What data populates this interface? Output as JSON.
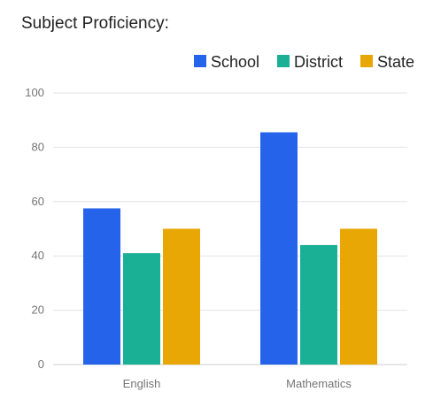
{
  "title": "Subject Proficiency:",
  "chart_data": {
    "type": "bar",
    "categories": [
      "English",
      "Mathematics"
    ],
    "series": [
      {
        "name": "School",
        "values": [
          57.5,
          85.5
        ],
        "color": "#2563EB"
      },
      {
        "name": "District",
        "values": [
          41,
          44
        ],
        "color": "#1AB096"
      },
      {
        "name": "State",
        "values": [
          50,
          50
        ],
        "color": "#E8A705"
      }
    ],
    "ylim": [
      0,
      100
    ],
    "yticks": [
      0,
      20,
      40,
      60,
      80,
      100
    ],
    "grid": true,
    "legend_position": "top-right"
  }
}
